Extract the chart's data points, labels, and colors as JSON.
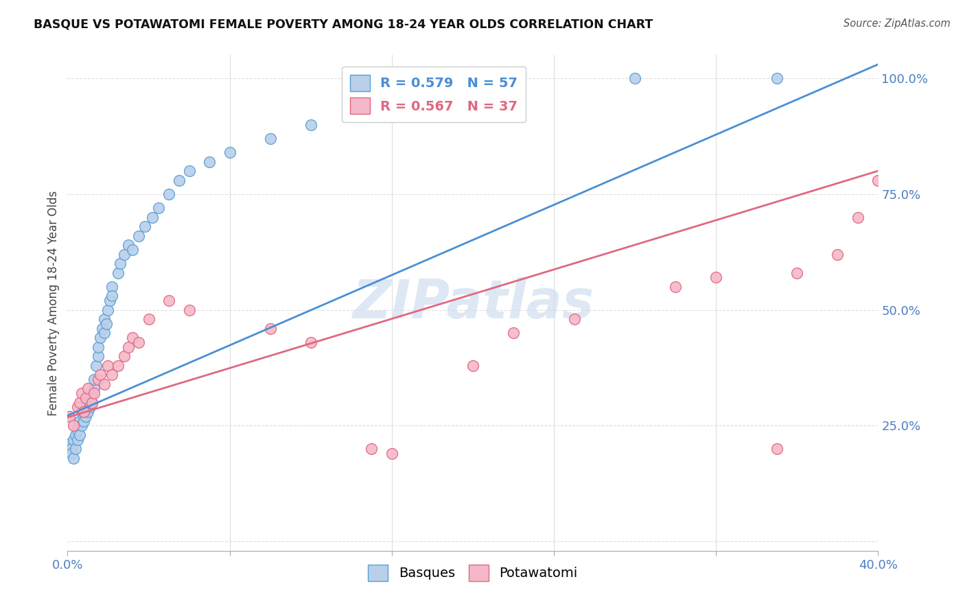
{
  "title": "BASQUE VS POTAWATOMI FEMALE POVERTY AMONG 18-24 YEAR OLDS CORRELATION CHART",
  "source": "Source: ZipAtlas.com",
  "ylabel": "Female Poverty Among 18-24 Year Olds",
  "xlim": [
    0.0,
    0.4
  ],
  "ylim": [
    -0.02,
    1.05
  ],
  "basque_R": 0.579,
  "basque_N": 57,
  "potawatomi_R": 0.567,
  "potawatomi_N": 37,
  "basque_color": "#b8d0ea",
  "basque_edge_color": "#5a9fd4",
  "potawatomi_color": "#f5b8c8",
  "potawatomi_edge_color": "#e06880",
  "basque_line_color": "#4a8fd4",
  "potawatomi_line_color": "#e06880",
  "watermark_color": "#d0dff0",
  "background_color": "#ffffff",
  "grid_color": "#dddddd",
  "tick_color": "#4a7fc1",
  "basque_x": [
    0.001,
    0.002,
    0.002,
    0.003,
    0.003,
    0.004,
    0.004,
    0.005,
    0.005,
    0.005,
    0.006,
    0.006,
    0.007,
    0.007,
    0.008,
    0.008,
    0.009,
    0.009,
    0.009,
    0.01,
    0.01,
    0.011,
    0.011,
    0.012,
    0.012,
    0.013,
    0.013,
    0.014,
    0.015,
    0.015,
    0.016,
    0.017,
    0.018,
    0.018,
    0.019,
    0.02,
    0.021,
    0.022,
    0.022,
    0.025,
    0.026,
    0.028,
    0.03,
    0.032,
    0.035,
    0.038,
    0.042,
    0.045,
    0.05,
    0.055,
    0.06,
    0.07,
    0.08,
    0.1,
    0.12,
    0.28,
    0.35
  ],
  "basque_y": [
    0.21,
    0.2,
    0.19,
    0.22,
    0.18,
    0.23,
    0.2,
    0.25,
    0.22,
    0.24,
    0.26,
    0.23,
    0.28,
    0.25,
    0.27,
    0.26,
    0.29,
    0.27,
    0.3,
    0.28,
    0.31,
    0.29,
    0.3,
    0.32,
    0.3,
    0.33,
    0.35,
    0.38,
    0.4,
    0.42,
    0.44,
    0.46,
    0.48,
    0.45,
    0.47,
    0.5,
    0.52,
    0.55,
    0.53,
    0.58,
    0.6,
    0.62,
    0.64,
    0.63,
    0.66,
    0.68,
    0.7,
    0.72,
    0.75,
    0.78,
    0.8,
    0.82,
    0.84,
    0.87,
    0.9,
    1.0,
    1.0
  ],
  "potawatomi_x": [
    0.001,
    0.003,
    0.005,
    0.006,
    0.007,
    0.008,
    0.009,
    0.01,
    0.012,
    0.013,
    0.015,
    0.016,
    0.018,
    0.02,
    0.022,
    0.025,
    0.028,
    0.03,
    0.032,
    0.035,
    0.04,
    0.05,
    0.06,
    0.1,
    0.12,
    0.15,
    0.16,
    0.2,
    0.22,
    0.25,
    0.3,
    0.32,
    0.35,
    0.36,
    0.38,
    0.39,
    0.4
  ],
  "potawatomi_y": [
    0.27,
    0.25,
    0.29,
    0.3,
    0.32,
    0.28,
    0.31,
    0.33,
    0.3,
    0.32,
    0.35,
    0.36,
    0.34,
    0.38,
    0.36,
    0.38,
    0.4,
    0.42,
    0.44,
    0.43,
    0.48,
    0.52,
    0.5,
    0.46,
    0.43,
    0.2,
    0.19,
    0.38,
    0.45,
    0.48,
    0.55,
    0.57,
    0.2,
    0.58,
    0.62,
    0.7,
    0.78
  ],
  "blue_line_x0": 0.0,
  "blue_line_y0": 0.272,
  "blue_line_x1": 0.4,
  "blue_line_y1": 1.03,
  "pink_line_x0": 0.0,
  "pink_line_y0": 0.268,
  "pink_line_x1": 0.4,
  "pink_line_y1": 0.8
}
